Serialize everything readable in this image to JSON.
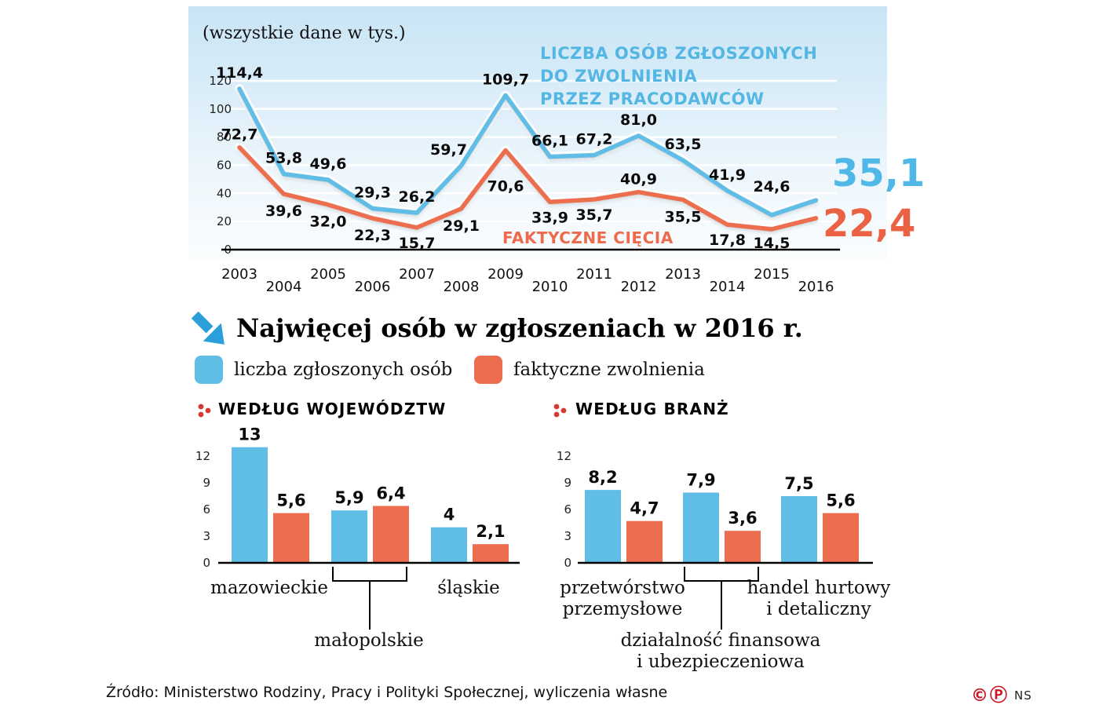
{
  "chart_data": [
    {
      "id": "timeline",
      "type": "line",
      "units_note": "(wszystkie dane w tys.)",
      "x": [
        2003,
        2004,
        2005,
        2006,
        2007,
        2008,
        2009,
        2010,
        2011,
        2012,
        2013,
        2014,
        2015,
        2016
      ],
      "series": [
        {
          "name": "LICZBA OSÓB ZGŁOSZONYCH\nDO ZWOLNIENIA\nPRZEZ PRACODAWCÓW",
          "color": "#5fbde6",
          "values": [
            114.4,
            53.8,
            49.6,
            29.3,
            26.2,
            59.7,
            109.7,
            66.1,
            67.2,
            81.0,
            63.5,
            41.9,
            24.6,
            35.1
          ],
          "labels": [
            "114,4",
            "53,8",
            "49,6",
            "29,3",
            "26,2",
            "59,7",
            "109,7",
            "66,1",
            "67,2",
            "81,0",
            "63,5",
            "41,9",
            "24,6"
          ],
          "final_value_label": "35,1"
        },
        {
          "name": "FAKTYCZNE CIĘCIA",
          "color": "#ec6e4e",
          "values": [
            72.7,
            39.6,
            32.0,
            22.3,
            15.7,
            29.1,
            70.6,
            33.9,
            35.7,
            40.9,
            35.5,
            17.8,
            14.5,
            22.4
          ],
          "labels": [
            "72,7",
            "39,6",
            "32,0",
            "22,3",
            "15,7",
            "29,1",
            "70,6",
            "33,9",
            "35,7",
            "40,9",
            "35,5",
            "17,8",
            "14,5"
          ],
          "final_value_label": "22,4"
        }
      ],
      "ylim": [
        0,
        120
      ],
      "yticks": [
        0,
        20,
        40,
        60,
        80,
        100,
        120
      ],
      "grid": true,
      "legend_position": "inline-annotations"
    },
    {
      "id": "by-voivodeship",
      "type": "bar",
      "title": "WEDŁUG WOJEWÓDZTW",
      "categories": [
        "mazowieckie",
        "małopolskie",
        "śląskie"
      ],
      "series": [
        {
          "name": "liczba zgłoszonych osób",
          "color": "#5fbde6",
          "values": [
            13,
            5.9,
            4
          ],
          "labels": [
            "13",
            "5,9",
            "4"
          ]
        },
        {
          "name": "faktyczne zwolnienia",
          "color": "#ec6e4e",
          "values": [
            5.6,
            6.4,
            2.1
          ],
          "labels": [
            "5,6",
            "6,4",
            "2,1"
          ]
        }
      ],
      "yticks": [
        0,
        3,
        6,
        9,
        12
      ],
      "ylim": [
        0,
        13.8
      ],
      "grid": false
    },
    {
      "id": "by-industry",
      "type": "bar",
      "title": "WEDŁUG BRANŻ",
      "categories": [
        "przetwórstwo\nprzemysłowe",
        "działalność finansowa\ni ubezpieczeniowa",
        "handel hurtowy\ni detaliczny"
      ],
      "series": [
        {
          "name": "liczba zgłoszonych osób",
          "color": "#5fbde6",
          "values": [
            8.2,
            7.9,
            7.5
          ],
          "labels": [
            "8,2",
            "7,9",
            "7,5"
          ]
        },
        {
          "name": "faktyczne zwolnienia",
          "color": "#ec6e4e",
          "values": [
            4.7,
            3.6,
            5.6
          ],
          "labels": [
            "4,7",
            "3,6",
            "5,6"
          ]
        }
      ],
      "yticks": [
        0,
        3,
        6,
        9,
        12
      ],
      "ylim": [
        0,
        13.8
      ],
      "grid": false
    }
  ],
  "section": {
    "title": "Najwięcej osób w zgłoszeniach w 2016 r."
  },
  "legend": {
    "items": [
      {
        "label": "liczba zgłoszonych osób",
        "color": "#5fbde6"
      },
      {
        "label": "faktyczne zwolnienia",
        "color": "#ec6e4e"
      }
    ]
  },
  "footer": {
    "source": "Źródło: Ministerstwo Rodziny, Pracy i Polityki Społecznej, wyliczenia własne",
    "copyright_c": "©",
    "copyright_p": "Ⓟ",
    "brand": "NS"
  }
}
